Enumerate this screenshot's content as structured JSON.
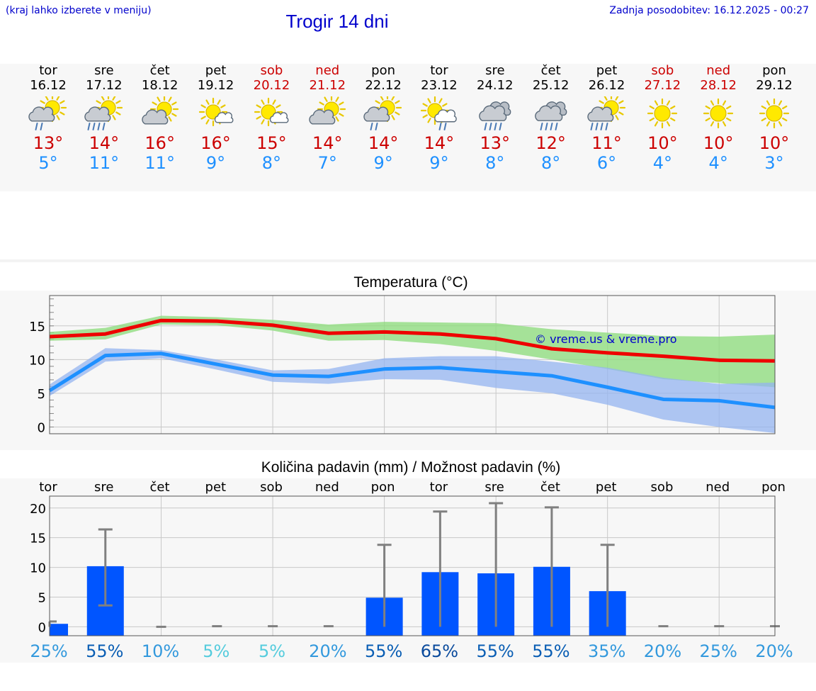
{
  "header": {
    "region_hint": "(kraj lahko izberete v meniju)",
    "title": "Trogir 14 dni",
    "last_update": "Zadnja posodobitev: 16.12.2025 - 00:27"
  },
  "colors": {
    "weekday": "#000000",
    "weekend": "#cc0000",
    "tmax": "#ee0000",
    "tmin": "#1e90ff",
    "tmax_band": "#90dc80",
    "tmin_band": "#94b4f0",
    "bar": "#0055ff",
    "error": "#808080"
  },
  "days": [
    {
      "name": "tor",
      "date": "16.12",
      "tmax": "13°",
      "tmin": "5°",
      "icon": "sun-cloud-rain-icon",
      "weekend": false
    },
    {
      "name": "sre",
      "date": "17.12",
      "tmax": "14°",
      "tmin": "11°",
      "icon": "sun-cloud-heavy-rain-icon",
      "weekend": false
    },
    {
      "name": "čet",
      "date": "18.12",
      "tmax": "16°",
      "tmin": "11°",
      "icon": "sun-cloud-icon",
      "weekend": false
    },
    {
      "name": "pet",
      "date": "19.12",
      "tmax": "16°",
      "tmin": "9°",
      "icon": "sun-small-cloud-icon",
      "weekend": false
    },
    {
      "name": "sob",
      "date": "20.12",
      "tmax": "15°",
      "tmin": "8°",
      "icon": "sun-small-cloud-icon",
      "weekend": true
    },
    {
      "name": "ned",
      "date": "21.12",
      "tmax": "14°",
      "tmin": "7°",
      "icon": "sun-cloud-icon",
      "weekend": true
    },
    {
      "name": "pon",
      "date": "22.12",
      "tmax": "14°",
      "tmin": "9°",
      "icon": "sun-cloud-rain-icon",
      "weekend": false
    },
    {
      "name": "tor",
      "date": "23.12",
      "tmax": "14°",
      "tmin": "9°",
      "icon": "sun-small-cloud-rain-icon",
      "weekend": false
    },
    {
      "name": "sre",
      "date": "24.12",
      "tmax": "13°",
      "tmin": "8°",
      "icon": "cloud-heavy-rain-icon",
      "weekend": false
    },
    {
      "name": "čet",
      "date": "25.12",
      "tmax": "12°",
      "tmin": "8°",
      "icon": "cloud-heavy-rain-icon",
      "weekend": false
    },
    {
      "name": "pet",
      "date": "26.12",
      "tmax": "11°",
      "tmin": "6°",
      "icon": "sun-cloud-heavy-rain-icon",
      "weekend": false
    },
    {
      "name": "sob",
      "date": "27.12",
      "tmax": "10°",
      "tmin": "4°",
      "icon": "sun-icon",
      "weekend": true
    },
    {
      "name": "ned",
      "date": "28.12",
      "tmax": "10°",
      "tmin": "4°",
      "icon": "sun-icon",
      "weekend": true
    },
    {
      "name": "pon",
      "date": "29.12",
      "tmax": "10°",
      "tmin": "3°",
      "icon": "sun-icon",
      "weekend": false
    }
  ],
  "chart_data": [
    {
      "type": "line",
      "title": "Temperatura (°C)",
      "watermark": "© vreme.us & vreme.pro",
      "x": [
        "16.12",
        "17.12",
        "18.12",
        "19.12",
        "20.12",
        "21.12",
        "22.12",
        "23.12",
        "24.12",
        "25.12",
        "26.12",
        "27.12",
        "28.12",
        "29.12"
      ],
      "ylim": [
        -1,
        19.5
      ],
      "yticks": [
        0,
        5,
        10,
        15
      ],
      "grid": true,
      "series": [
        {
          "name": "tmax",
          "values": [
            13.4,
            13.8,
            15.8,
            15.7,
            15.1,
            13.9,
            14.1,
            13.8,
            13.1,
            11.6,
            11.0,
            10.5,
            9.9,
            9.8
          ],
          "band_low": [
            12.8,
            13.0,
            15.2,
            15.1,
            14.3,
            12.8,
            12.9,
            12.3,
            11.3,
            10.0,
            8.6,
            7.1,
            6.5,
            5.9
          ],
          "band_high": [
            14.1,
            14.7,
            16.5,
            16.3,
            15.9,
            15.2,
            15.6,
            15.5,
            15.4,
            14.5,
            14.0,
            13.5,
            13.4,
            13.7
          ]
        },
        {
          "name": "tmin",
          "values": [
            5.4,
            10.6,
            10.9,
            9.3,
            7.7,
            7.5,
            8.6,
            8.8,
            8.2,
            7.6,
            5.9,
            4.1,
            3.9,
            2.9
          ],
          "band_low": [
            4.6,
            9.7,
            10.2,
            8.5,
            6.7,
            6.4,
            7.1,
            7.0,
            5.8,
            5.0,
            3.3,
            1.1,
            0.0,
            -0.9
          ],
          "band_high": [
            6.3,
            11.7,
            11.4,
            10.0,
            8.4,
            8.6,
            10.2,
            10.5,
            10.5,
            9.7,
            8.8,
            7.3,
            6.4,
            6.6
          ]
        }
      ]
    },
    {
      "type": "bar",
      "title": "Količina padavin (mm) / Možnost padavin (%)",
      "categories": [
        "tor",
        "sre",
        "čet",
        "pet",
        "sob",
        "ned",
        "pon",
        "tor",
        "sre",
        "čet",
        "pet",
        "sob",
        "ned",
        "pon"
      ],
      "values": [
        0.5,
        10.2,
        0,
        0,
        0,
        0,
        4.9,
        9.2,
        9.0,
        10.1,
        6.0,
        0,
        0,
        0
      ],
      "error_high": [
        0.9,
        16.4,
        0,
        0.1,
        0.1,
        0.1,
        13.8,
        19.4,
        20.8,
        20.1,
        13.8,
        0.1,
        0.1,
        0.1
      ],
      "error_low": [
        0,
        3.6,
        0,
        0,
        0,
        0,
        0,
        0,
        0,
        0,
        0,
        0,
        0,
        0
      ],
      "probability": [
        "25%",
        "55%",
        "10%",
        "5%",
        "5%",
        "20%",
        "55%",
        "65%",
        "55%",
        "55%",
        "35%",
        "20%",
        "25%",
        "20%"
      ],
      "probability_colors": [
        "#3399dd",
        "#0a5eb4",
        "#3399dd",
        "#55ccdd",
        "#55ccdd",
        "#3399dd",
        "#0a5eb4",
        "#0a4a9c",
        "#0a5eb4",
        "#0a5eb4",
        "#3399dd",
        "#3399dd",
        "#3399dd",
        "#3399dd"
      ],
      "ylim": [
        -1.5,
        22
      ],
      "yticks": [
        0,
        5,
        10,
        15,
        20
      ]
    }
  ]
}
